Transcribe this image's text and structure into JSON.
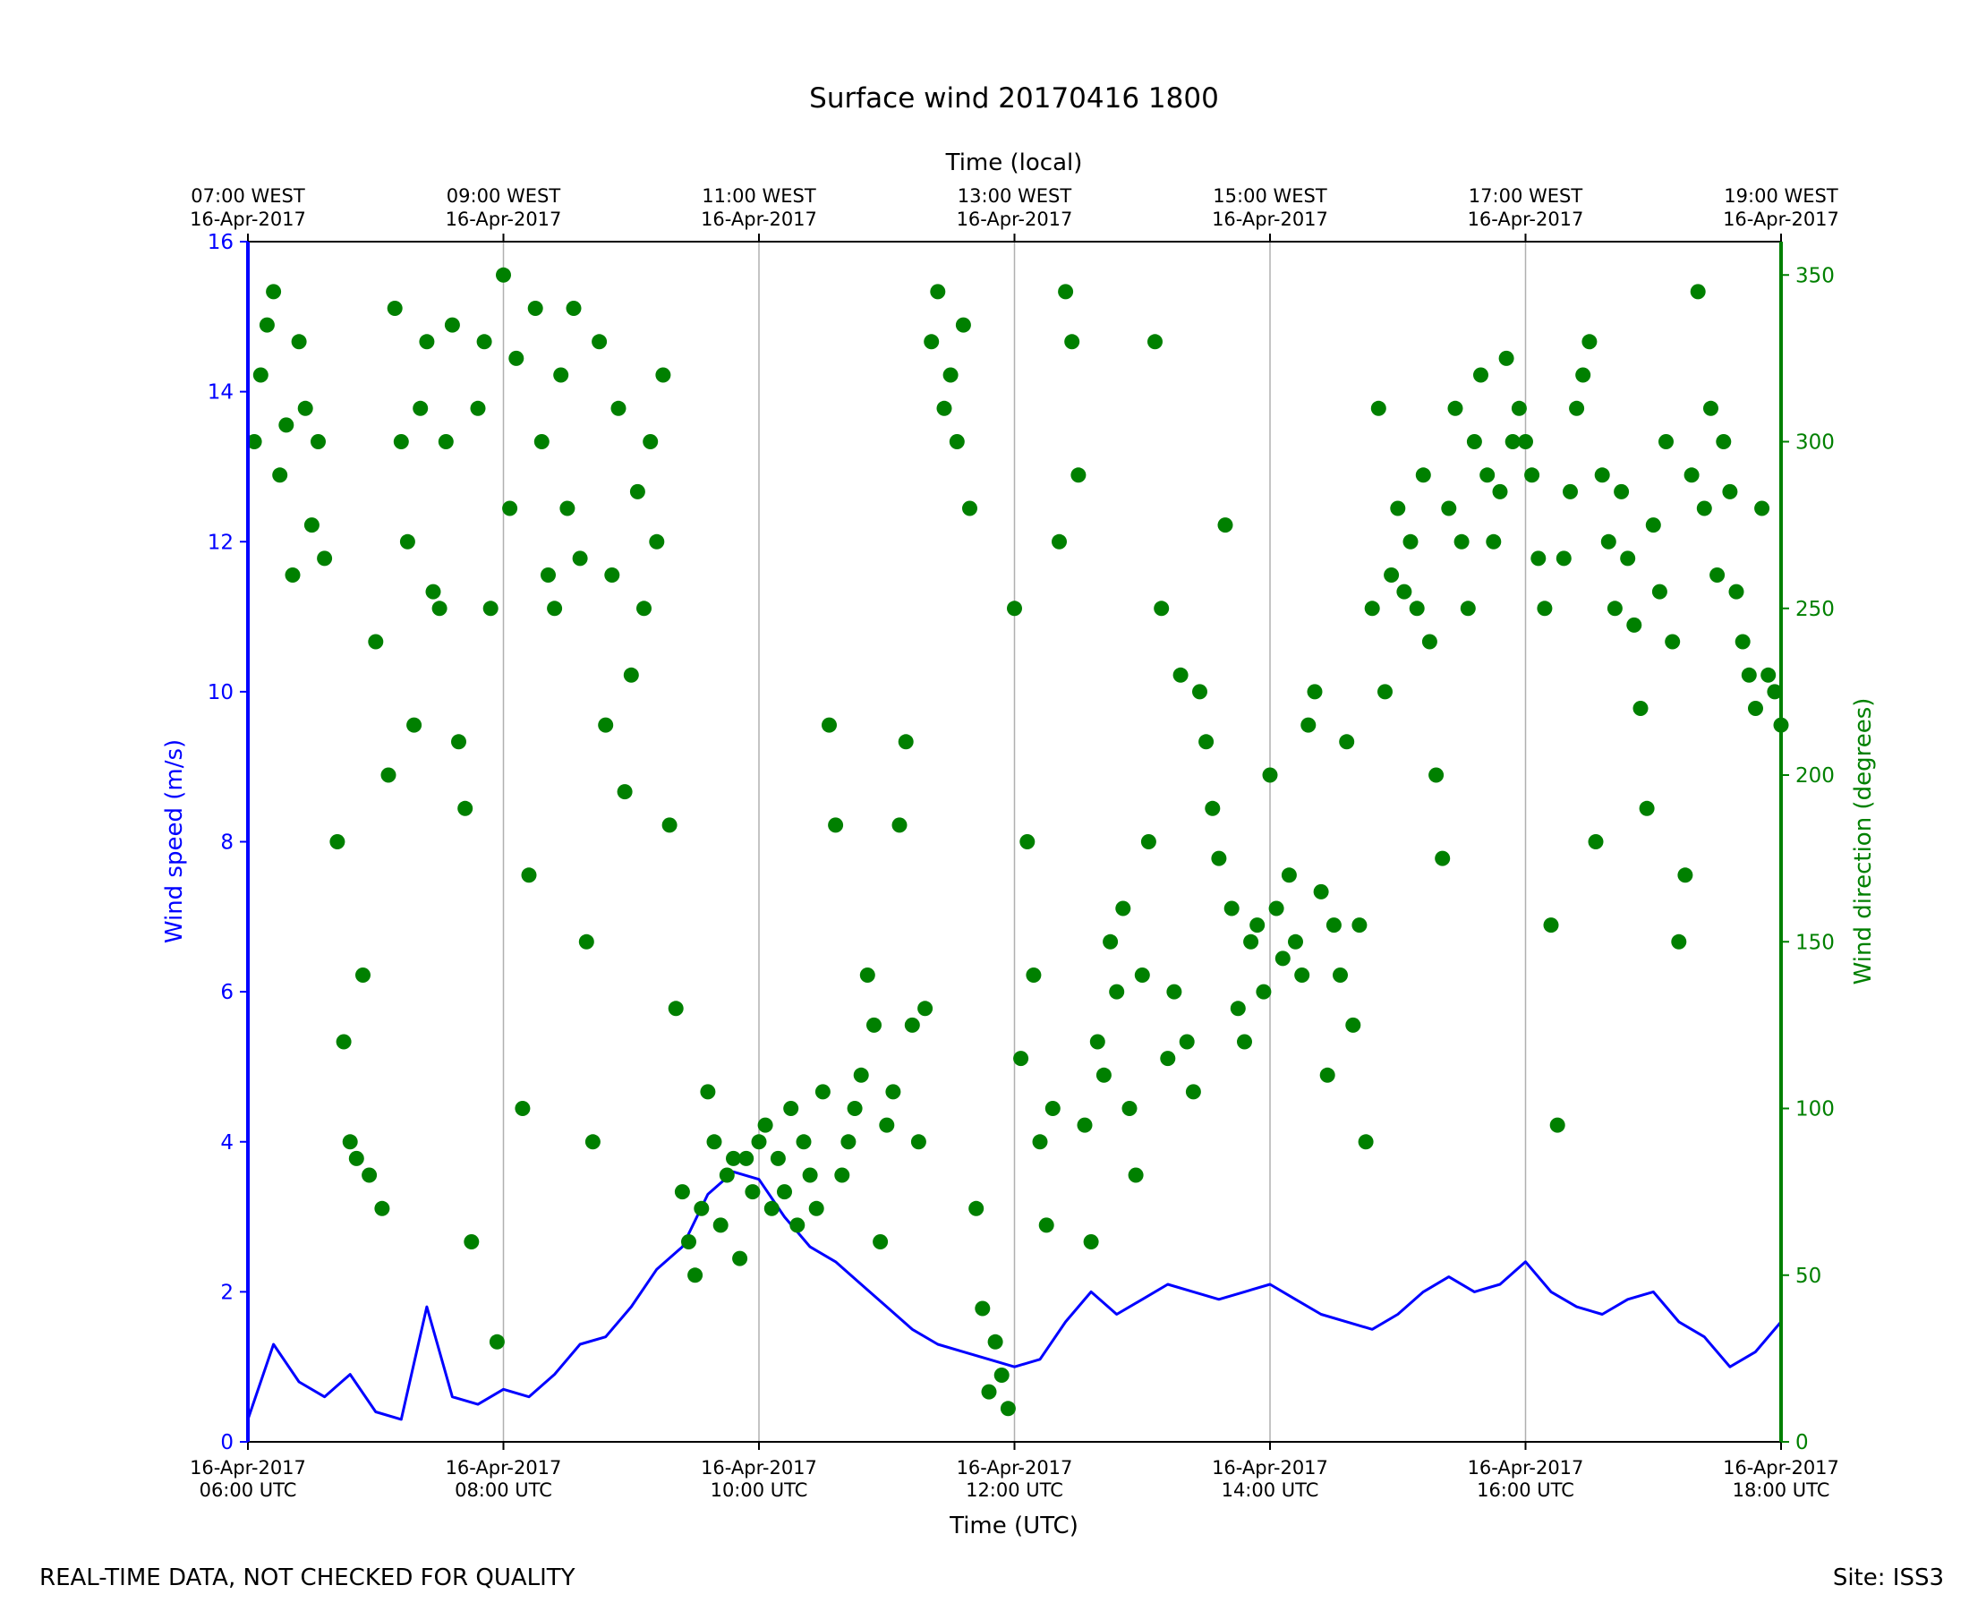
{
  "footer": {
    "disclaimer": "REAL-TIME DATA, NOT CHECKED FOR QUALITY",
    "site": "Site: ISS3"
  },
  "chart_data": {
    "type": "line+scatter",
    "title": "Surface wind 20170416 1800",
    "xlabel": "Time (UTC)",
    "xlabel_top": "Time (local)",
    "ylabel_left": "Wind speed (m/s)",
    "ylabel_right": "Wind direction (degrees)",
    "x_range_utc_hours": [
      6,
      18
    ],
    "ylim_left": [
      0,
      16
    ],
    "ylim_right": [
      0,
      360
    ],
    "left_axis_color": "#0000ff",
    "right_axis_color": "#008000",
    "grid": "vertical lines at major x ticks",
    "x_ticks_bottom": [
      {
        "x": 6,
        "line1": "16-Apr-2017",
        "line2": "06:00 UTC"
      },
      {
        "x": 8,
        "line1": "16-Apr-2017",
        "line2": "08:00 UTC"
      },
      {
        "x": 10,
        "line1": "16-Apr-2017",
        "line2": "10:00 UTC"
      },
      {
        "x": 12,
        "line1": "16-Apr-2017",
        "line2": "12:00 UTC"
      },
      {
        "x": 14,
        "line1": "16-Apr-2017",
        "line2": "14:00 UTC"
      },
      {
        "x": 16,
        "line1": "16-Apr-2017",
        "line2": "16:00 UTC"
      },
      {
        "x": 18,
        "line1": "16-Apr-2017",
        "line2": "18:00 UTC"
      }
    ],
    "x_ticks_top": [
      {
        "x": 6,
        "line1": "07:00 WEST",
        "line2": "16-Apr-2017"
      },
      {
        "x": 8,
        "line1": "09:00 WEST",
        "line2": "16-Apr-2017"
      },
      {
        "x": 10,
        "line1": "11:00 WEST",
        "line2": "16-Apr-2017"
      },
      {
        "x": 12,
        "line1": "13:00 WEST",
        "line2": "16-Apr-2017"
      },
      {
        "x": 14,
        "line1": "15:00 WEST",
        "line2": "16-Apr-2017"
      },
      {
        "x": 16,
        "line1": "17:00 WEST",
        "line2": "16-Apr-2017"
      },
      {
        "x": 18,
        "line1": "19:00 WEST",
        "line2": "16-Apr-2017"
      }
    ],
    "y_ticks_left": [
      0,
      2,
      4,
      6,
      8,
      10,
      12,
      14,
      16
    ],
    "y_ticks_right": [
      0,
      50,
      100,
      150,
      200,
      250,
      300,
      350
    ],
    "series": [
      {
        "name": "Wind speed (m/s)",
        "style": "line",
        "color": "#0000ff",
        "x_utc_hours": [
          6.0,
          6.2,
          6.4,
          6.6,
          6.8,
          7.0,
          7.2,
          7.4,
          7.6,
          7.8,
          8.0,
          8.2,
          8.4,
          8.6,
          8.8,
          9.0,
          9.2,
          9.4,
          9.6,
          9.8,
          10.0,
          10.2,
          10.4,
          10.6,
          10.8,
          11.0,
          11.2,
          11.4,
          11.6,
          11.8,
          12.0,
          12.2,
          12.4,
          12.6,
          12.8,
          13.0,
          13.2,
          13.4,
          13.6,
          13.8,
          14.0,
          14.2,
          14.4,
          14.6,
          14.8,
          15.0,
          15.2,
          15.4,
          15.6,
          15.8,
          16.0,
          16.2,
          16.4,
          16.6,
          16.8,
          17.0,
          17.2,
          17.4,
          17.6,
          17.8,
          18.0
        ],
        "values": [
          0.3,
          1.3,
          0.8,
          0.6,
          0.9,
          0.4,
          0.3,
          1.8,
          0.6,
          0.5,
          0.7,
          0.6,
          0.9,
          1.3,
          1.4,
          1.8,
          2.3,
          2.6,
          3.3,
          3.6,
          3.5,
          3.0,
          2.6,
          2.4,
          2.1,
          1.8,
          1.5,
          1.3,
          1.2,
          1.1,
          1.0,
          1.1,
          1.6,
          2.0,
          1.7,
          1.9,
          2.1,
          2.0,
          1.9,
          2.0,
          2.1,
          1.9,
          1.7,
          1.6,
          1.5,
          1.7,
          2.0,
          2.2,
          2.0,
          2.1,
          2.4,
          2.0,
          1.8,
          1.7,
          1.9,
          2.0,
          1.6,
          1.4,
          1.0,
          1.2,
          1.6
        ]
      },
      {
        "name": "Wind direction (degrees)",
        "style": "scatter",
        "color": "#008000",
        "points": [
          [
            6.05,
            300
          ],
          [
            6.1,
            320
          ],
          [
            6.15,
            335
          ],
          [
            6.2,
            345
          ],
          [
            6.25,
            290
          ],
          [
            6.3,
            305
          ],
          [
            6.35,
            260
          ],
          [
            6.4,
            330
          ],
          [
            6.45,
            310
          ],
          [
            6.5,
            275
          ],
          [
            6.55,
            300
          ],
          [
            6.6,
            265
          ],
          [
            6.7,
            180
          ],
          [
            6.75,
            120
          ],
          [
            6.8,
            90
          ],
          [
            6.85,
            85
          ],
          [
            6.9,
            140
          ],
          [
            6.95,
            80
          ],
          [
            7.0,
            240
          ],
          [
            7.05,
            70
          ],
          [
            7.1,
            200
          ],
          [
            7.15,
            340
          ],
          [
            7.2,
            300
          ],
          [
            7.25,
            270
          ],
          [
            7.3,
            215
          ],
          [
            7.35,
            310
          ],
          [
            7.4,
            330
          ],
          [
            7.45,
            255
          ],
          [
            7.5,
            250
          ],
          [
            7.55,
            300
          ],
          [
            7.6,
            335
          ],
          [
            7.65,
            210
          ],
          [
            7.7,
            190
          ],
          [
            7.75,
            60
          ],
          [
            7.8,
            310
          ],
          [
            7.85,
            330
          ],
          [
            7.9,
            250
          ],
          [
            7.95,
            30
          ],
          [
            8.0,
            350
          ],
          [
            8.05,
            280
          ],
          [
            8.1,
            325
          ],
          [
            8.15,
            100
          ],
          [
            8.2,
            170
          ],
          [
            8.25,
            340
          ],
          [
            8.3,
            300
          ],
          [
            8.35,
            260
          ],
          [
            8.4,
            250
          ],
          [
            8.45,
            320
          ],
          [
            8.5,
            280
          ],
          [
            8.55,
            340
          ],
          [
            8.6,
            265
          ],
          [
            8.65,
            150
          ],
          [
            8.7,
            90
          ],
          [
            8.75,
            330
          ],
          [
            8.8,
            215
          ],
          [
            8.85,
            260
          ],
          [
            8.9,
            310
          ],
          [
            8.95,
            195
          ],
          [
            9.0,
            230
          ],
          [
            9.05,
            285
          ],
          [
            9.1,
            250
          ],
          [
            9.15,
            300
          ],
          [
            9.2,
            270
          ],
          [
            9.25,
            320
          ],
          [
            9.3,
            185
          ],
          [
            9.35,
            130
          ],
          [
            9.4,
            75
          ],
          [
            9.45,
            60
          ],
          [
            9.5,
            50
          ],
          [
            9.55,
            70
          ],
          [
            9.6,
            105
          ],
          [
            9.65,
            90
          ],
          [
            9.7,
            65
          ],
          [
            9.75,
            80
          ],
          [
            9.8,
            85
          ],
          [
            9.85,
            55
          ],
          [
            9.9,
            85
          ],
          [
            9.95,
            75
          ],
          [
            10.0,
            90
          ],
          [
            10.05,
            95
          ],
          [
            10.1,
            70
          ],
          [
            10.15,
            85
          ],
          [
            10.2,
            75
          ],
          [
            10.25,
            100
          ],
          [
            10.3,
            65
          ],
          [
            10.35,
            90
          ],
          [
            10.4,
            80
          ],
          [
            10.45,
            70
          ],
          [
            10.5,
            105
          ],
          [
            10.55,
            215
          ],
          [
            10.6,
            185
          ],
          [
            10.65,
            80
          ],
          [
            10.7,
            90
          ],
          [
            10.75,
            100
          ],
          [
            10.8,
            110
          ],
          [
            10.85,
            140
          ],
          [
            10.9,
            125
          ],
          [
            10.95,
            60
          ],
          [
            11.0,
            95
          ],
          [
            11.05,
            105
          ],
          [
            11.1,
            185
          ],
          [
            11.15,
            210
          ],
          [
            11.2,
            125
          ],
          [
            11.25,
            90
          ],
          [
            11.3,
            130
          ],
          [
            11.35,
            330
          ],
          [
            11.4,
            345
          ],
          [
            11.45,
            310
          ],
          [
            11.5,
            320
          ],
          [
            11.55,
            300
          ],
          [
            11.6,
            335
          ],
          [
            11.65,
            280
          ],
          [
            11.7,
            70
          ],
          [
            11.75,
            40
          ],
          [
            11.8,
            15
          ],
          [
            11.85,
            30
          ],
          [
            11.9,
            20
          ],
          [
            11.95,
            10
          ],
          [
            12.0,
            250
          ],
          [
            12.05,
            115
          ],
          [
            12.1,
            180
          ],
          [
            12.15,
            140
          ],
          [
            12.2,
            90
          ],
          [
            12.25,
            65
          ],
          [
            12.3,
            100
          ],
          [
            12.35,
            270
          ],
          [
            12.4,
            345
          ],
          [
            12.45,
            330
          ],
          [
            12.5,
            290
          ],
          [
            12.55,
            95
          ],
          [
            12.6,
            60
          ],
          [
            12.65,
            120
          ],
          [
            12.7,
            110
          ],
          [
            12.75,
            150
          ],
          [
            12.8,
            135
          ],
          [
            12.85,
            160
          ],
          [
            12.9,
            100
          ],
          [
            12.95,
            80
          ],
          [
            13.0,
            140
          ],
          [
            13.05,
            180
          ],
          [
            13.1,
            330
          ],
          [
            13.15,
            250
          ],
          [
            13.2,
            115
          ],
          [
            13.25,
            135
          ],
          [
            13.3,
            230
          ],
          [
            13.35,
            120
          ],
          [
            13.4,
            105
          ],
          [
            13.45,
            225
          ],
          [
            13.5,
            210
          ],
          [
            13.55,
            190
          ],
          [
            13.6,
            175
          ],
          [
            13.65,
            275
          ],
          [
            13.7,
            160
          ],
          [
            13.75,
            130
          ],
          [
            13.8,
            120
          ],
          [
            13.85,
            150
          ],
          [
            13.9,
            155
          ],
          [
            13.95,
            135
          ],
          [
            14.0,
            200
          ],
          [
            14.05,
            160
          ],
          [
            14.1,
            145
          ],
          [
            14.15,
            170
          ],
          [
            14.2,
            150
          ],
          [
            14.25,
            140
          ],
          [
            14.3,
            215
          ],
          [
            14.35,
            225
          ],
          [
            14.4,
            165
          ],
          [
            14.45,
            110
          ],
          [
            14.5,
            155
          ],
          [
            14.55,
            140
          ],
          [
            14.6,
            210
          ],
          [
            14.65,
            125
          ],
          [
            14.7,
            155
          ],
          [
            14.75,
            90
          ],
          [
            14.8,
            250
          ],
          [
            14.85,
            310
          ],
          [
            14.9,
            225
          ],
          [
            14.95,
            260
          ],
          [
            15.0,
            280
          ],
          [
            15.05,
            255
          ],
          [
            15.1,
            270
          ],
          [
            15.15,
            250
          ],
          [
            15.2,
            290
          ],
          [
            15.25,
            240
          ],
          [
            15.3,
            200
          ],
          [
            15.35,
            175
          ],
          [
            15.4,
            280
          ],
          [
            15.45,
            310
          ],
          [
            15.5,
            270
          ],
          [
            15.55,
            250
          ],
          [
            15.6,
            300
          ],
          [
            15.65,
            320
          ],
          [
            15.7,
            290
          ],
          [
            15.75,
            270
          ],
          [
            15.8,
            285
          ],
          [
            15.85,
            325
          ],
          [
            15.9,
            300
          ],
          [
            15.95,
            310
          ],
          [
            16.0,
            300
          ],
          [
            16.05,
            290
          ],
          [
            16.1,
            265
          ],
          [
            16.15,
            250
          ],
          [
            16.2,
            155
          ],
          [
            16.25,
            95
          ],
          [
            16.3,
            265
          ],
          [
            16.35,
            285
          ],
          [
            16.4,
            310
          ],
          [
            16.45,
            320
          ],
          [
            16.5,
            330
          ],
          [
            16.55,
            180
          ],
          [
            16.6,
            290
          ],
          [
            16.65,
            270
          ],
          [
            16.7,
            250
          ],
          [
            16.75,
            285
          ],
          [
            16.8,
            265
          ],
          [
            16.85,
            245
          ],
          [
            16.9,
            220
          ],
          [
            16.95,
            190
          ],
          [
            17.0,
            275
          ],
          [
            17.05,
            255
          ],
          [
            17.1,
            300
          ],
          [
            17.15,
            240
          ],
          [
            17.2,
            150
          ],
          [
            17.25,
            170
          ],
          [
            17.3,
            290
          ],
          [
            17.35,
            345
          ],
          [
            17.4,
            280
          ],
          [
            17.45,
            310
          ],
          [
            17.5,
            260
          ],
          [
            17.55,
            300
          ],
          [
            17.6,
            285
          ],
          [
            17.65,
            255
          ],
          [
            17.7,
            240
          ],
          [
            17.75,
            230
          ],
          [
            17.8,
            220
          ],
          [
            17.85,
            280
          ],
          [
            17.9,
            230
          ],
          [
            17.95,
            225
          ],
          [
            18.0,
            215
          ]
        ]
      }
    ]
  }
}
